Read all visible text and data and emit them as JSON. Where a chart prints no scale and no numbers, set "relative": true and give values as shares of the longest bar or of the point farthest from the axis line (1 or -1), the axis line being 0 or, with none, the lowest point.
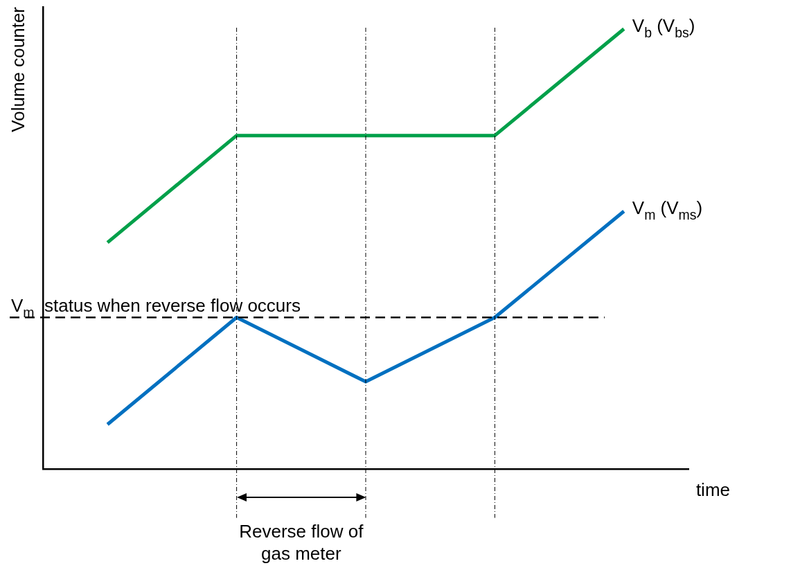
{
  "chart_data": {
    "type": "line",
    "relative": true,
    "ylabel": "Volume counter",
    "xlabel": "time",
    "categories": [
      null,
      null,
      null,
      null,
      null
    ],
    "series": [
      {
        "name": "V$_{b}$ (V$_{bs}$)",
        "color": "#00a04a",
        "values": [
          0.515,
          0.758,
          0.758,
          0.758,
          1
        ]
      },
      {
        "name": "V$_{m}$ (V$_{ms}$)",
        "color": "#0070c0",
        "values": [
          0.102,
          0.345,
          0.199,
          0.345,
          0.586
        ]
      }
    ],
    "ref_lines": [
      {
        "axis": "y",
        "value": 0.345,
        "label": "V$_{m}$  status when reverse flow occurs",
        "line_style": "dashed"
      }
    ],
    "annotations": [
      "Reverse flow of gas meter"
    ],
    "grid": "x",
    "legend": false,
    "marker": "none",
    "line_style": "solid"
  }
}
